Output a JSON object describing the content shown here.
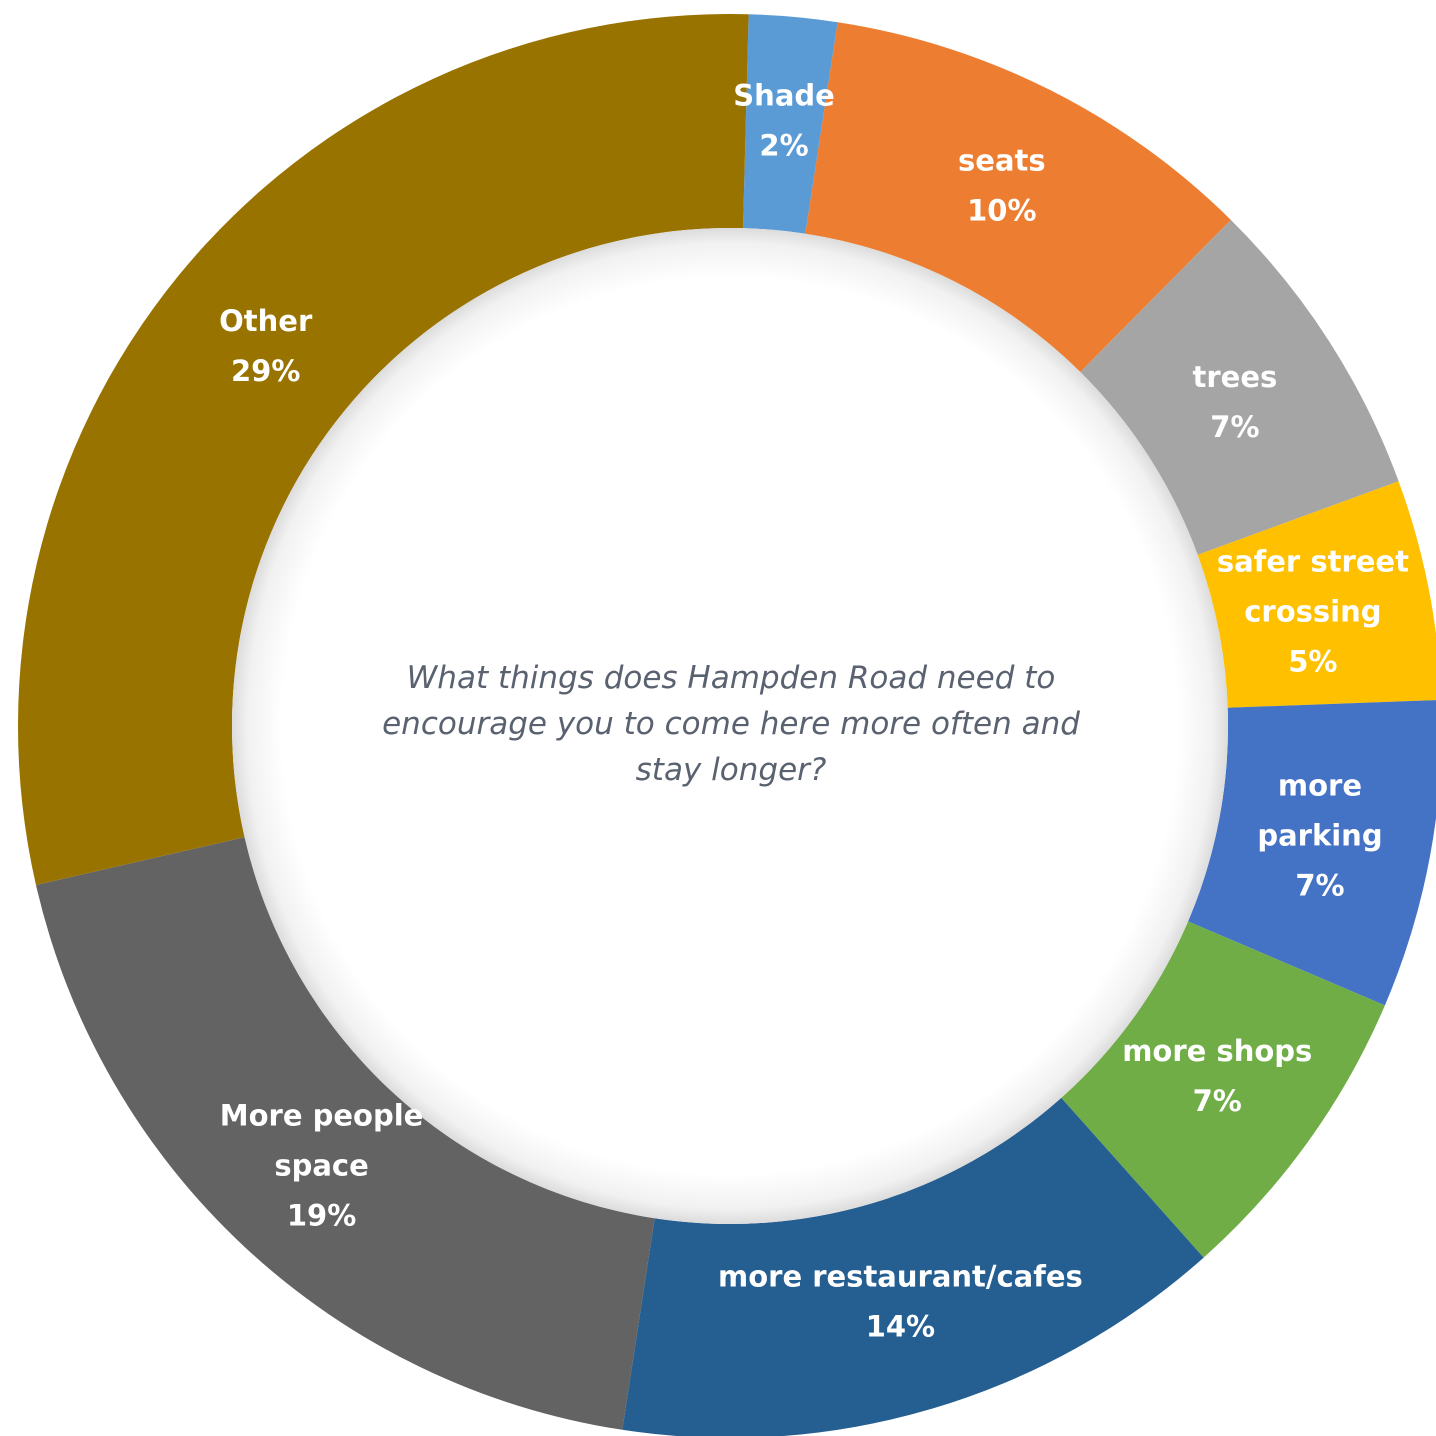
{
  "chart_data": {
    "type": "pie",
    "variant": "donut",
    "title": "What things does Hampden Road need to encourage you to come here more often and stay longer?",
    "slices": [
      {
        "label": "Shade",
        "value": 2,
        "value_label": "2%",
        "color": "#5b9bd5"
      },
      {
        "label": "seats",
        "value": 10,
        "value_label": "10%",
        "color": "#ed7d31"
      },
      {
        "label": "trees",
        "value": 7,
        "value_label": "7%",
        "color": "#a5a5a5"
      },
      {
        "label": "safer street crossing",
        "value": 5,
        "value_label": "5%",
        "color": "#ffc000"
      },
      {
        "label": "more parking",
        "value": 7,
        "value_label": "7%",
        "color": "#4472c4"
      },
      {
        "label": "more shops",
        "value": 7,
        "value_label": "7%",
        "color": "#70ad47"
      },
      {
        "label": "more restaurant/cafes",
        "value": 14,
        "value_label": "14%",
        "color": "#255e91"
      },
      {
        "label": "More people space",
        "value": 19,
        "value_label": "19%",
        "color": "#636363"
      },
      {
        "label": "Other",
        "value": 29,
        "value_label": "29%",
        "color": "#997300"
      }
    ],
    "legend": "none",
    "data_labels": "on slices (category name and percentage)"
  }
}
